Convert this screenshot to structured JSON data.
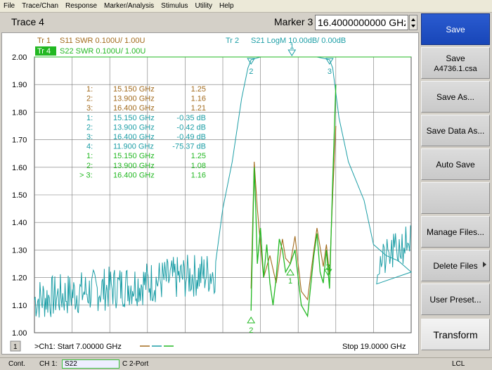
{
  "menu": {
    "items": [
      "File",
      "Trace/Chan",
      "Response",
      "Marker/Analysis",
      "Stimulus",
      "Utility",
      "Help"
    ]
  },
  "header": {
    "trace_title": "Trace 4",
    "marker_label": "Marker 3",
    "marker_value": "16.4000000000 GHz"
  },
  "plot": {
    "trace_legends": [
      {
        "id": "Tr 1",
        "text": "S11 SWR 0.100U/  1.00U",
        "color": "#a26a1c",
        "active": false
      },
      {
        "id": "Tr 4",
        "text": "S22 SWR 0.100U/  1.00U",
        "color": "#22b822",
        "active": true
      },
      {
        "id": "Tr  2",
        "text": "S21 LogM 10.00dB/  0.00dB",
        "color": "#1c9ea6",
        "active": false
      }
    ],
    "y_ticks": [
      "2.00",
      "1.90",
      "1.80",
      "1.70",
      "1.60",
      "1.50",
      "1.40",
      "1.30",
      "1.20",
      "1.10",
      "1.00"
    ],
    "marker_table": [
      {
        "idx": "1:",
        "freq": "15.150 GHz",
        "val": "1.25",
        "color": "#a26a1c"
      },
      {
        "idx": "2:",
        "freq": "13.900 GHz",
        "val": "1.16",
        "color": "#a26a1c"
      },
      {
        "idx": "3:",
        "freq": "16.400 GHz",
        "val": "1.21",
        "color": "#a26a1c"
      },
      {
        "idx": "1:",
        "freq": "15.150 GHz",
        "val": "-0.35 dB",
        "color": "#1c9ea6"
      },
      {
        "idx": "2:",
        "freq": "13.900 GHz",
        "val": "-0.42 dB",
        "color": "#1c9ea6"
      },
      {
        "idx": "3:",
        "freq": "16.400 GHz",
        "val": "-0.49 dB",
        "color": "#1c9ea6"
      },
      {
        "idx": "4:",
        "freq": "11.900 GHz",
        "val": "-75.37 dB",
        "color": "#1c9ea6"
      },
      {
        "idx": "1:",
        "freq": "15.150 GHz",
        "val": "1.25",
        "color": "#22b822"
      },
      {
        "idx": "2:",
        "freq": "13.900 GHz",
        "val": "1.08",
        "color": "#22b822"
      },
      {
        "idx": "> 3:",
        "freq": "16.400 GHz",
        "val": "1.16",
        "color": "#22b822"
      }
    ],
    "marker_flags": [
      {
        "label": "1",
        "color": "#1c9ea6"
      },
      {
        "label": "2",
        "color": "#1c9ea6"
      },
      {
        "label": "3",
        "color": "#1c9ea6"
      },
      {
        "label": "2",
        "color": "#22b822"
      },
      {
        "label": "1",
        "color": "#22b822"
      },
      {
        "label": "3",
        "color": "#22b822"
      }
    ],
    "channel_number": "1",
    "start_label": ">Ch1: Start  7.00000 GHz",
    "stop_label": "Stop  19.0000 GHz"
  },
  "status": {
    "mode": "Cont.",
    "channel": "CH 1:",
    "measurement": "S22",
    "cal": "C  2-Port",
    "remote": "LCL"
  },
  "softkeys": {
    "title": "Save",
    "save_label": "Save",
    "save_file": "A4736.1.csa",
    "save_as": "Save As...",
    "save_data_as": "Save Data As...",
    "auto_save": "Auto Save",
    "manage_files": "Manage Files...",
    "delete_files": "Delete Files",
    "user_preset": "User Preset...",
    "transform": "Transform"
  },
  "colors": {
    "s11": "#a26a1c",
    "s21": "#1c9ea6",
    "s22": "#22b822",
    "softkey_title": "#1e4fc4"
  },
  "chart_data": {
    "type": "line",
    "x_range_ghz": [
      7.0,
      19.0
    ],
    "y_range": [
      1.0,
      2.0
    ],
    "series": [
      {
        "trace": "Tr 4 S22",
        "x": [
          13.9,
          14.0,
          14.05,
          14.1,
          14.2,
          14.3,
          14.4,
          14.5,
          14.6,
          14.7,
          14.8,
          14.9,
          15.0,
          15.1,
          15.15,
          15.3,
          15.5,
          15.7,
          15.9,
          16.0,
          16.1,
          16.2,
          16.3,
          16.4,
          16.5,
          16.6
        ],
        "y": [
          1.08,
          1.6,
          1.45,
          1.25,
          1.38,
          1.2,
          1.32,
          1.18,
          1.1,
          1.2,
          1.34,
          1.3,
          1.22,
          1.24,
          1.25,
          1.3,
          1.1,
          1.06,
          1.28,
          1.36,
          1.22,
          1.18,
          1.3,
          1.16,
          1.55,
          1.9
        ]
      },
      {
        "trace": "Tr 1 S11",
        "x": [
          13.9,
          14.0,
          14.1,
          14.2,
          14.3,
          14.5,
          14.7,
          14.9,
          15.0,
          15.15,
          15.3,
          15.5,
          15.7,
          15.9,
          16.0,
          16.2,
          16.3,
          16.4,
          16.5,
          16.6
        ],
        "y": [
          1.16,
          1.62,
          1.45,
          1.32,
          1.2,
          1.28,
          1.18,
          1.34,
          1.27,
          1.25,
          1.35,
          1.15,
          1.12,
          1.3,
          1.38,
          1.24,
          1.32,
          1.21,
          1.5,
          1.75
        ]
      },
      {
        "trace": "Tr 2 S21",
        "x": [
          7.0,
          8.0,
          9.0,
          10.0,
          11.0,
          11.9,
          12.5,
          13.0,
          13.3,
          13.6,
          13.8,
          13.9,
          14.2,
          15.15,
          16.0,
          16.4,
          16.5,
          16.7,
          17.0,
          17.5,
          17.8,
          18.2,
          18.6,
          19.0
        ],
        "y": [
          1.1,
          1.14,
          1.16,
          1.18,
          1.2,
          1.22,
          1.28,
          1.45,
          1.62,
          1.85,
          1.96,
          1.99,
          2.0,
          2.0,
          2.0,
          1.99,
          1.96,
          1.78,
          1.62,
          1.48,
          1.32,
          1.28,
          1.26,
          1.22
        ]
      }
    ]
  }
}
